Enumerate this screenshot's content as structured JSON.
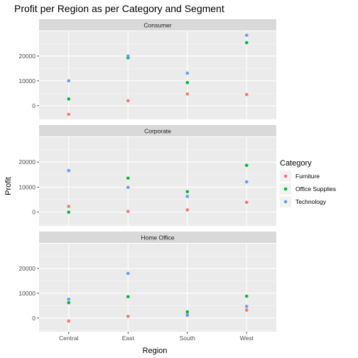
{
  "chart_data": {
    "type": "scatter",
    "title": "Profit per Region as per Category and Segment",
    "xlabel": "Region",
    "ylabel": "Profit",
    "categories": [
      "Central",
      "East",
      "South",
      "West"
    ],
    "yticks": [
      0,
      10000,
      20000
    ],
    "ylim": [
      -5500,
      30000
    ],
    "grid": true,
    "legend": {
      "title": "Category",
      "position": "right",
      "entries": [
        {
          "name": "Furniture",
          "color": "#f8766d"
        },
        {
          "name": "Office Supplies",
          "color": "#00ba38"
        },
        {
          "name": "Technology",
          "color": "#619cff"
        }
      ]
    },
    "facets": [
      {
        "label": "Consumer",
        "series": [
          {
            "name": "Furniture",
            "values": [
              -3500,
              2000,
              4700,
              4500
            ]
          },
          {
            "name": "Office Supplies",
            "values": [
              2700,
              19300,
              9300,
              25400
            ]
          },
          {
            "name": "Technology",
            "values": [
              10000,
              20000,
              13100,
              28400
            ]
          }
        ]
      },
      {
        "label": "Corporate",
        "series": [
          {
            "name": "Furniture",
            "values": [
              2300,
              300,
              900,
              3900
            ]
          },
          {
            "name": "Office Supplies",
            "values": [
              0,
              13600,
              8200,
              18700
            ]
          },
          {
            "name": "Technology",
            "values": [
              16600,
              9900,
              6300,
              12100
            ]
          }
        ]
      },
      {
        "label": "Home Office",
        "series": [
          {
            "name": "Furniture",
            "values": [
              -1200,
              700,
              1100,
              3200
            ]
          },
          {
            "name": "Office Supplies",
            "values": [
              6200,
              8600,
              2500,
              8800
            ]
          },
          {
            "name": "Technology",
            "values": [
              7600,
              18000,
              1300,
              4700
            ]
          }
        ]
      }
    ]
  }
}
